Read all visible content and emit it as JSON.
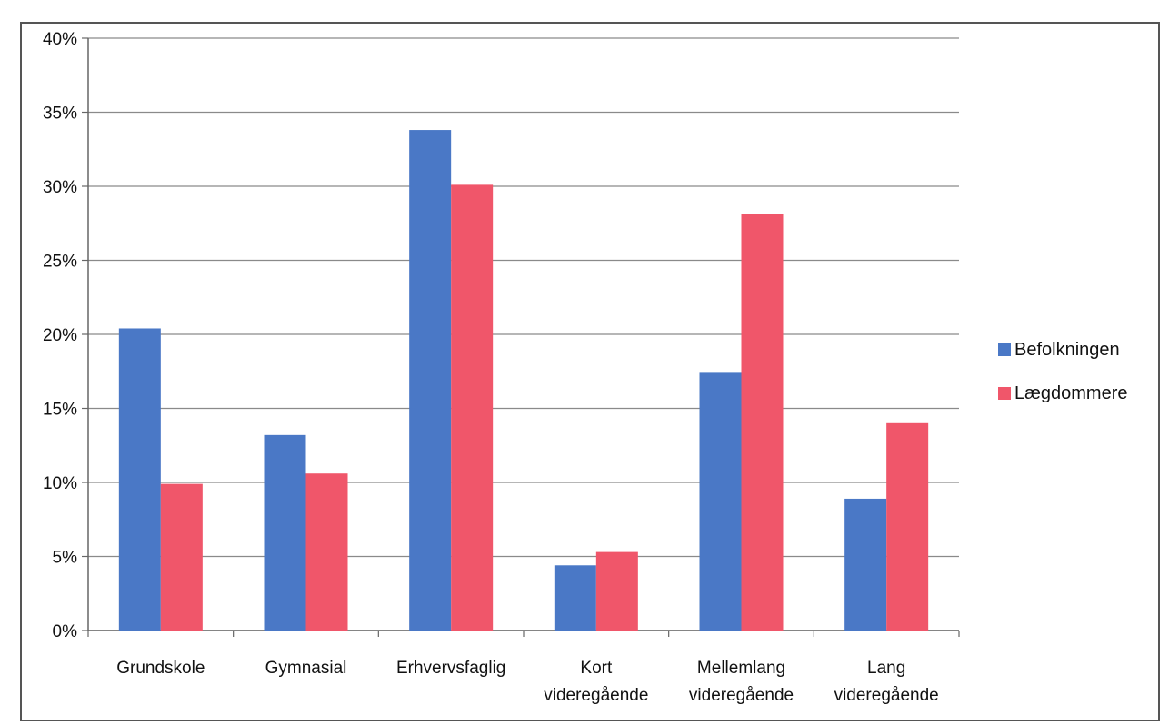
{
  "caption": "",
  "chart_data": {
    "type": "bar",
    "categories": [
      [
        "Grundskole"
      ],
      [
        "Gymnasial"
      ],
      [
        "Erhvervsfaglig"
      ],
      [
        "Kort",
        "videregående"
      ],
      [
        "Mellemlang",
        "videregående"
      ],
      [
        "Lang",
        "videregående"
      ]
    ],
    "series": [
      {
        "name": "Befolkningen",
        "color": "#4a78c6",
        "values": [
          20.4,
          13.2,
          33.8,
          4.4,
          17.4,
          8.9
        ]
      },
      {
        "name": "Lægdommere",
        "color": "#f0566a",
        "values": [
          9.9,
          10.6,
          30.1,
          5.3,
          28.1,
          14.0
        ]
      }
    ],
    "y_ticks": [
      "0%",
      "5%",
      "10%",
      "15%",
      "20%",
      "25%",
      "30%",
      "35%",
      "40%"
    ],
    "ylim": [
      0,
      40
    ],
    "grid": true,
    "legend_position": "right",
    "title": "",
    "xlabel": "",
    "ylabel": ""
  }
}
